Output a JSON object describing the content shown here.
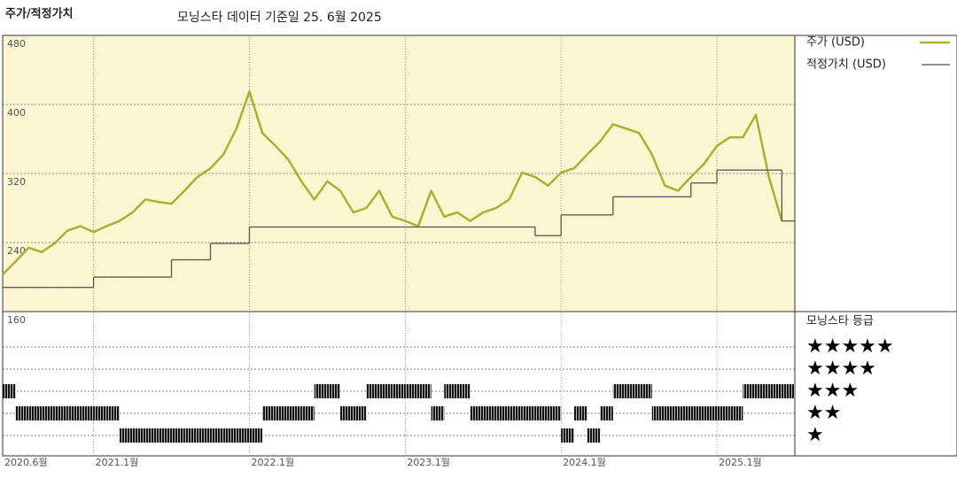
{
  "chart_data": {
    "type": "line",
    "title": "주가/적정가치",
    "subtitle": "모닝스타 데이터 기준일 25. 6월 2025",
    "x": [
      "2020-06",
      "2020-07",
      "2020-08",
      "2020-09",
      "2020-10",
      "2020-11",
      "2020-12",
      "2021-01",
      "2021-02",
      "2021-03",
      "2021-04",
      "2021-05",
      "2021-06",
      "2021-07",
      "2021-08",
      "2021-09",
      "2021-10",
      "2021-11",
      "2021-12",
      "2022-01",
      "2022-02",
      "2022-03",
      "2022-04",
      "2022-05",
      "2022-06",
      "2022-07",
      "2022-08",
      "2022-09",
      "2022-10",
      "2022-11",
      "2022-12",
      "2023-01",
      "2023-02",
      "2023-03",
      "2023-04",
      "2023-05",
      "2023-06",
      "2023-07",
      "2023-08",
      "2023-09",
      "2023-10",
      "2023-11",
      "2023-12",
      "2024-01",
      "2024-02",
      "2024-03",
      "2024-04",
      "2024-05",
      "2024-06",
      "2024-07",
      "2024-08",
      "2024-09",
      "2024-10",
      "2024-11",
      "2024-12",
      "2025-01",
      "2025-02",
      "2025-03",
      "2025-04",
      "2025-05",
      "2025-06"
    ],
    "series": [
      {
        "name": "주가 (USD)",
        "color": "#a9b22c",
        "values": [
          203,
          218,
          234,
          229,
          239,
          254,
          259,
          252,
          259,
          265,
          275,
          290,
          287,
          285,
          300,
          316,
          326,
          342,
          372,
          415,
          367,
          352,
          336,
          311,
          290,
          311,
          300,
          275,
          280,
          300,
          270,
          265,
          259,
          300,
          270,
          275,
          265,
          275,
          280,
          290,
          321,
          316,
          306,
          321,
          326,
          342,
          357,
          377,
          372,
          367,
          342,
          306,
          300,
          316,
          331,
          352,
          362,
          362,
          388,
          316,
          265
        ]
      },
      {
        "name": "적정가치 (USD)",
        "color": "#555555",
        "step": true,
        "values": [
          188,
          188,
          188,
          188,
          188,
          188,
          188,
          200,
          200,
          200,
          200,
          200,
          200,
          220,
          220,
          220,
          239,
          239,
          239,
          258,
          258,
          258,
          258,
          258,
          258,
          258,
          258,
          258,
          258,
          258,
          258,
          258,
          258,
          258,
          258,
          258,
          258,
          258,
          258,
          258,
          258,
          248,
          248,
          272,
          272,
          272,
          272,
          293,
          293,
          293,
          293,
          293,
          293,
          309,
          309,
          324,
          324,
          324,
          324,
          324,
          265
        ]
      }
    ],
    "xlim": [
      "2020-06",
      "2025-07"
    ],
    "xticks": [
      {
        "value": "2020-06",
        "label": "2020.6월"
      },
      {
        "value": "2021-01",
        "label": "2021.1월"
      },
      {
        "value": "2022-01",
        "label": "2022.1월"
      },
      {
        "value": "2023-01",
        "label": "2023.1월"
      },
      {
        "value": "2024-01",
        "label": "2024.1월"
      },
      {
        "value": "2025-01",
        "label": "2025.1월"
      }
    ],
    "ylim": [
      160,
      480
    ],
    "yticks": [
      160,
      240,
      320,
      400,
      480
    ],
    "grid": true,
    "background": "#faf6d2",
    "ratings": {
      "title": "모닝스타 등급",
      "levels": [
        5,
        4,
        3,
        2,
        1
      ],
      "labels": [
        "★★★★★",
        "★★★★",
        "★★★",
        "★★",
        "★"
      ],
      "values": [
        3,
        2,
        2,
        2,
        2,
        2,
        2,
        2,
        2,
        1,
        1,
        1,
        1,
        1,
        1,
        1,
        1,
        1,
        1,
        1,
        2,
        2,
        2,
        2,
        3,
        3,
        2,
        2,
        3,
        3,
        3,
        3,
        3,
        2,
        3,
        3,
        2,
        2,
        2,
        2,
        2,
        2,
        2,
        1,
        2,
        1,
        2,
        3,
        3,
        3,
        2,
        2,
        2,
        2,
        2,
        2,
        2,
        3,
        3,
        3,
        3
      ]
    }
  }
}
